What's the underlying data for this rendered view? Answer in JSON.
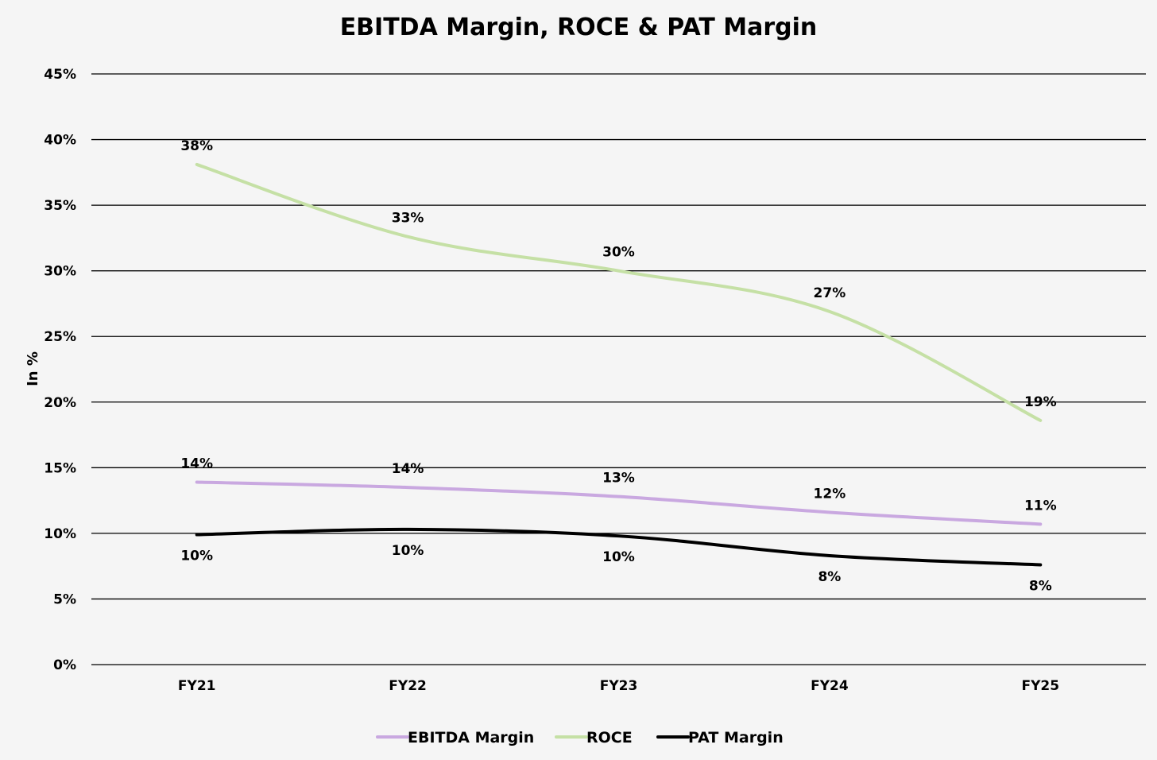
{
  "chart_data": {
    "type": "line",
    "title": "EBITDA Margin, ROCE & PAT Margin",
    "xlabel": "",
    "ylabel": "In %",
    "ylim": [
      0,
      45
    ],
    "y_ticks": [
      0,
      5,
      10,
      15,
      20,
      25,
      30,
      35,
      40,
      45
    ],
    "y_tick_labels": [
      "0%",
      "5%",
      "10%",
      "15%",
      "20%",
      "25%",
      "30%",
      "35%",
      "40%",
      "45%"
    ],
    "grid": true,
    "legend_position": "bottom",
    "categories": [
      "FY21",
      "FY22",
      "FY23",
      "FY24",
      "FY25"
    ],
    "series": [
      {
        "name": "EBITDA Margin",
        "color": "#c9a8e0",
        "values": [
          13.9,
          13.5,
          12.8,
          11.6,
          10.7
        ],
        "labels": [
          "14%",
          "14%",
          "13%",
          "12%",
          "11%"
        ],
        "label_position": "above"
      },
      {
        "name": "ROCE",
        "color": "#c5e0a5",
        "values": [
          38.1,
          32.6,
          30.0,
          26.9,
          18.6
        ],
        "labels": [
          "38%",
          "33%",
          "30%",
          "27%",
          "19%"
        ],
        "label_position": "above"
      },
      {
        "name": "PAT Margin",
        "color": "#000000",
        "values": [
          9.9,
          10.3,
          9.8,
          8.3,
          7.6
        ],
        "labels": [
          "10%",
          "10%",
          "10%",
          "8%",
          "8%"
        ],
        "label_position": "below"
      }
    ]
  }
}
